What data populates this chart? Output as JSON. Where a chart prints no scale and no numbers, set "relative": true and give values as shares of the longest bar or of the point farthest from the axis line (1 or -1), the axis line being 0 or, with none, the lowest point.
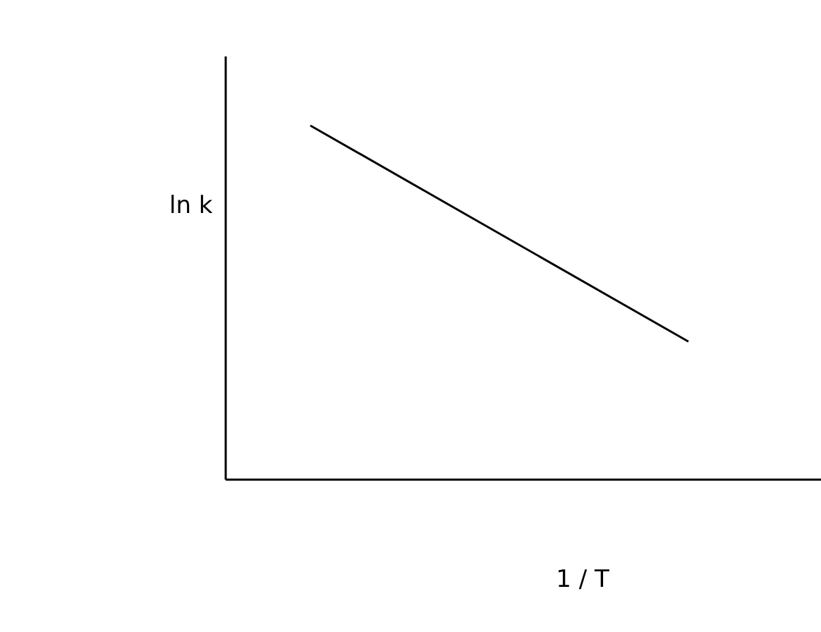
{
  "chart_data": {
    "type": "line",
    "relative": true,
    "xlabel": "1 / T",
    "ylabel": "ln k",
    "categories": [
      null,
      null
    ],
    "series": [
      {
        "color": "#000000",
        "values": [
          1,
          0.39
        ]
      }
    ]
  }
}
